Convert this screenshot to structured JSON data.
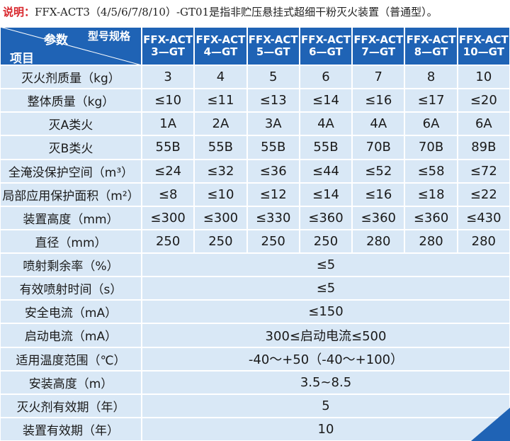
{
  "note": {
    "label": "说明：",
    "text": "FFX-ACT3（4/5/6/7/8/10）-GT01是指非贮压悬挂式超细干粉灭火装置（普通型）。"
  },
  "table": {
    "header": {
      "param": "参数",
      "spec": "型号规格",
      "item": "项目",
      "models": [
        [
          "FFX-ACT",
          "3—GT"
        ],
        [
          "FFX-ACT",
          "4—GT"
        ],
        [
          "FFX-ACT",
          "5—GT"
        ],
        [
          "FFX-ACT",
          "6—GT"
        ],
        [
          "FFX-ACT",
          "7—GT"
        ],
        [
          "FFX-ACT",
          "8—GT"
        ],
        [
          "FFX-ACT",
          "10—GT"
        ]
      ]
    },
    "rows": [
      {
        "label": "灭火剂质量（kg）",
        "values": [
          "3",
          "4",
          "5",
          "6",
          "7",
          "8",
          "10"
        ]
      },
      {
        "label": "整体质量（kg）",
        "values": [
          "≤10",
          "≤11",
          "≤13",
          "≤14",
          "≤16",
          "≤17",
          "≤20"
        ]
      },
      {
        "label": "灭A类火",
        "values": [
          "1A",
          "2A",
          "3A",
          "4A",
          "4A",
          "6A",
          "6A"
        ]
      },
      {
        "label": "灭B类火",
        "values": [
          "55B",
          "55B",
          "55B",
          "55B",
          "70B",
          "70B",
          "89B"
        ]
      },
      {
        "label": "全淹没保护空间（m³）",
        "values": [
          "≤24",
          "≤32",
          "≤36",
          "≤44",
          "≤52",
          "≤58",
          "≤72"
        ]
      },
      {
        "label": "局部应用保护面积（m²）",
        "values": [
          "≤8",
          "≤10",
          "≤12",
          "≤14",
          "≤16",
          "≤18",
          "≤22"
        ]
      },
      {
        "label": "装置高度（mm）",
        "values": [
          "≤300",
          "≤300",
          "≤330",
          "≤360",
          "≤360",
          "≤360",
          "≤430"
        ]
      },
      {
        "label": "直径（mm）",
        "values": [
          "250",
          "250",
          "250",
          "250",
          "280",
          "280",
          "280"
        ]
      },
      {
        "label": "喷射剩余率（%）",
        "values": [
          "≤5"
        ]
      },
      {
        "label": "有效喷射时间（s）",
        "values": [
          "≤5"
        ]
      },
      {
        "label": "安全电流（mA）",
        "values": [
          "≤150"
        ]
      },
      {
        "label": "启动电流（mA）",
        "values": [
          "300≤启动电流≤500"
        ]
      },
      {
        "label": "适用温度范围（℃）",
        "values": [
          "-40～+50（-40～+100）"
        ]
      },
      {
        "label": "安装高度（m）",
        "values": [
          "3.5~8.5"
        ]
      },
      {
        "label": "灭火剂有效期（年）",
        "values": [
          "5"
        ]
      },
      {
        "label": "装置有效期（年）",
        "values": [
          "10"
        ]
      }
    ]
  }
}
